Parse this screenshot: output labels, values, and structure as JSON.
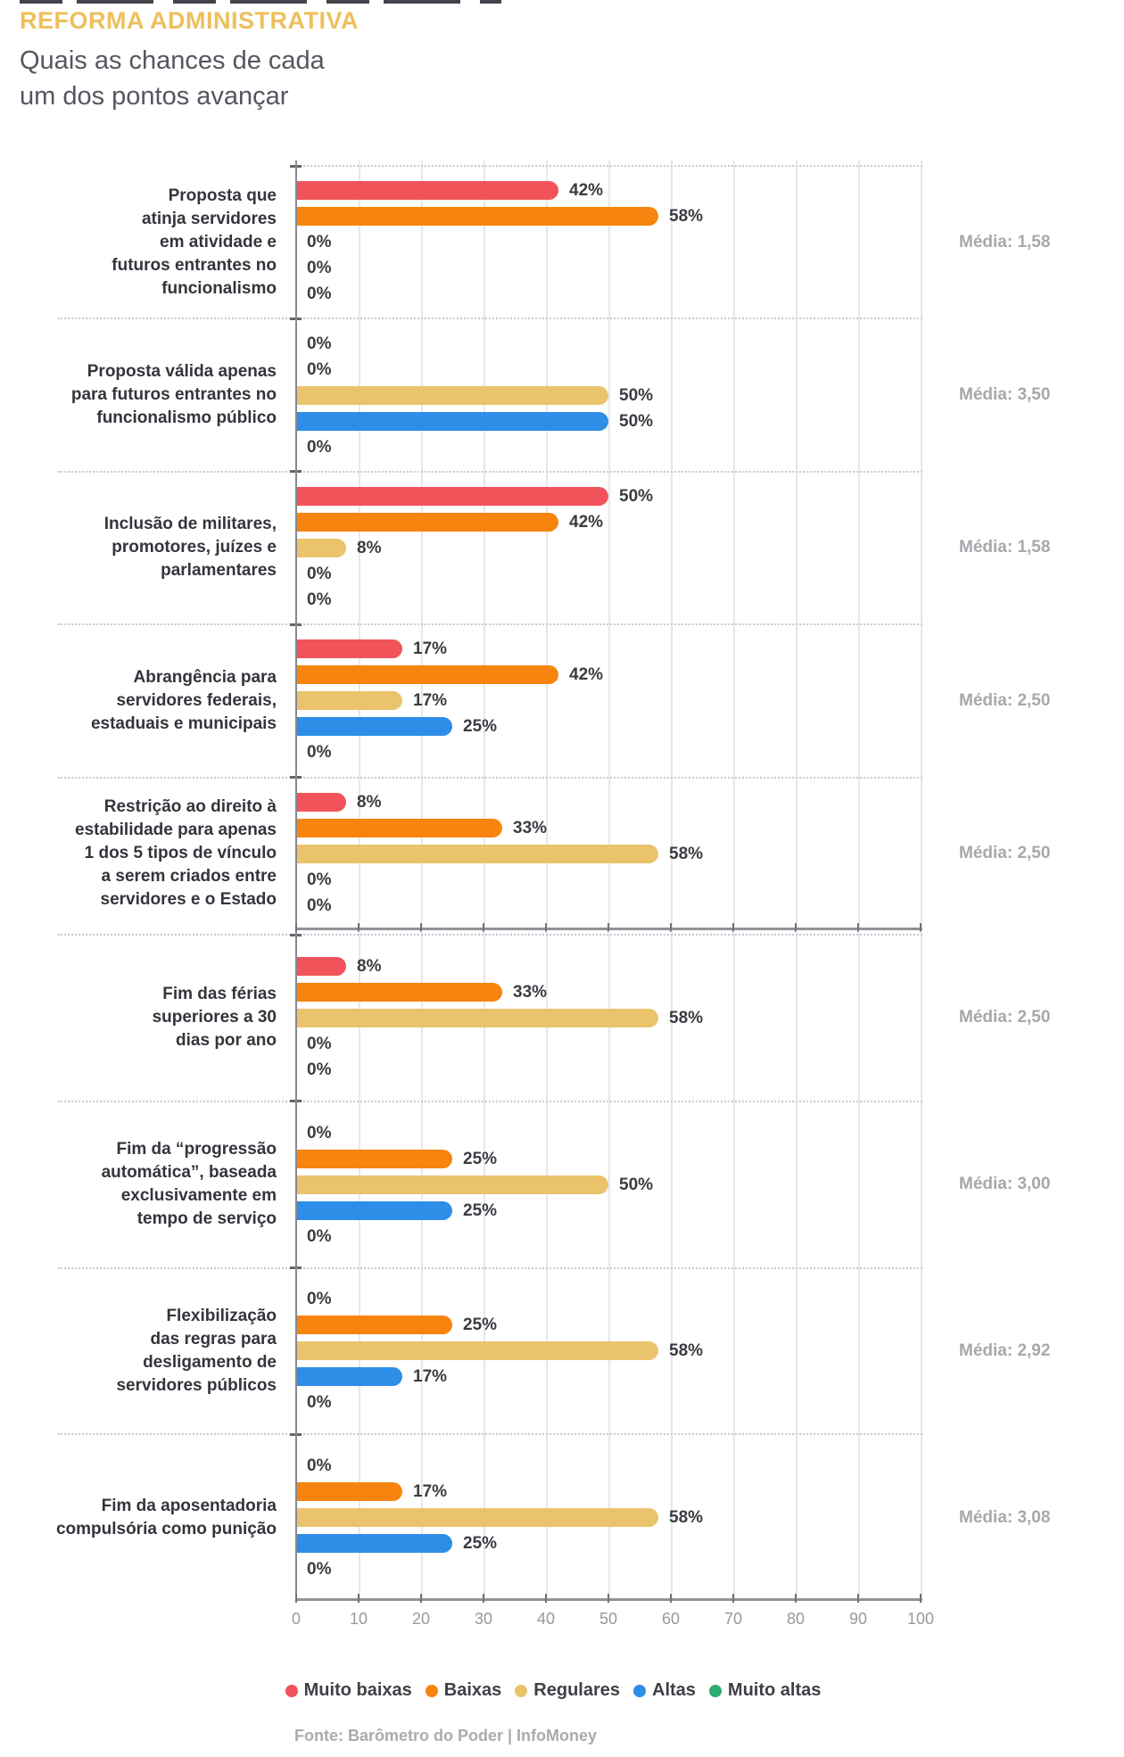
{
  "header": {
    "title": "REFORMA ADMINISTRATIVA",
    "subtitle_lines": [
      "Quais as chances de cada",
      "um dos pontos avançar"
    ]
  },
  "chart_data": {
    "type": "bar",
    "orientation": "horizontal",
    "value_unit": "%",
    "grid": true,
    "legend_position": "bottom",
    "x_axis": {
      "min": 0,
      "max": 100,
      "tick_step": 10,
      "tick_labels": [
        "0",
        "10",
        "20",
        "30",
        "40",
        "50",
        "60",
        "70",
        "80",
        "90",
        "100"
      ]
    },
    "series": [
      {
        "name": "Muito baixas",
        "color": "#F2535A"
      },
      {
        "name": "Baixas",
        "color": "#F7840E"
      },
      {
        "name": "Regulares",
        "color": "#EAC36C"
      },
      {
        "name": "Altas",
        "color": "#2E8DE7"
      },
      {
        "name": "Muito altas",
        "color": "#2CAD72"
      }
    ],
    "groups": [
      {
        "panel": 1,
        "label": "Proposta que\natinja servidores\nem atividade e\nfuturos entrantes no\nfuncionalismo",
        "values": [
          42,
          58,
          0,
          0,
          0
        ],
        "media": 1.58,
        "media_label": "Média: 1,58"
      },
      {
        "panel": 1,
        "label": "Proposta válida apenas\npara futuros entrantes no\nfuncionalismo público",
        "values": [
          0,
          0,
          50,
          50,
          0
        ],
        "media": 3.5,
        "media_label": "Média: 3,50"
      },
      {
        "panel": 1,
        "label": "Inclusão de militares,\npromotores, juízes e\nparlamentares",
        "values": [
          50,
          42,
          8,
          0,
          0
        ],
        "media": 1.58,
        "media_label": "Média: 1,58"
      },
      {
        "panel": 1,
        "label": "Abrangência para\nservidores federais,\nestaduais e municipais",
        "values": [
          17,
          42,
          17,
          25,
          0
        ],
        "media": 2.5,
        "media_label": "Média: 2,50"
      },
      {
        "panel": 1,
        "label": "Restrição ao direito à\nestabilidade para apenas\n1 dos 5 tipos de vínculo\na serem criados entre\nservidores e o Estado",
        "values": [
          8,
          33,
          58,
          0,
          0
        ],
        "media": 2.5,
        "media_label": "Média: 2,50"
      },
      {
        "panel": 2,
        "label": "Fim das férias\nsuperiores a 30\ndias por ano",
        "values": [
          8,
          33,
          58,
          0,
          0
        ],
        "media": 2.5,
        "media_label": "Média: 2,50"
      },
      {
        "panel": 2,
        "label": "Fim da “progressão\nautomática”, baseada\nexclusivamente em\ntempo de serviço",
        "values": [
          0,
          25,
          50,
          25,
          0
        ],
        "media": 3.0,
        "media_label": "Média: 3,00"
      },
      {
        "panel": 2,
        "label": "Flexibilização\ndas regras para\ndesligamento de\nservidores públicos",
        "values": [
          0,
          25,
          58,
          17,
          0
        ],
        "media": 2.92,
        "media_label": "Média: 2,92"
      },
      {
        "panel": 2,
        "label": "Fim da aposentadoria\ncompulsória como punição",
        "values": [
          0,
          17,
          58,
          25,
          0
        ],
        "media": 3.08,
        "media_label": "Média: 3,08"
      }
    ]
  },
  "footer": {
    "source": "Fonte: Barômetro do Poder | InfoMoney"
  }
}
